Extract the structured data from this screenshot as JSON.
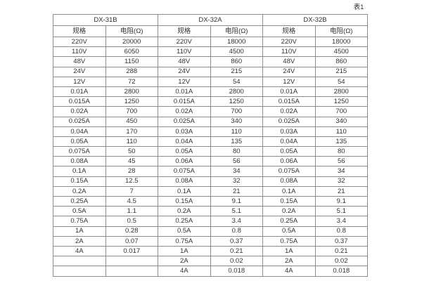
{
  "page": {
    "table_label": "表1"
  },
  "table": {
    "groups": [
      {
        "label": "DX-31B"
      },
      {
        "label": "DX-32A"
      },
      {
        "label": "DX-32B"
      }
    ],
    "column_headers": {
      "spec": "规格",
      "resistance": "电阻(Ω)"
    },
    "rows": [
      [
        "220V",
        "20000",
        "220V",
        "18000",
        "220V",
        "18000"
      ],
      [
        "110V",
        "6050",
        "110V",
        "4500",
        "110V",
        "4500"
      ],
      [
        "48V",
        "1150",
        "48V",
        "860",
        "48V",
        "860"
      ],
      [
        "24V",
        "288",
        "24V",
        "215",
        "24V",
        "215"
      ],
      [
        "12V",
        "72",
        "12V",
        "54",
        "12V",
        "54"
      ],
      [
        "0.01A",
        "2800",
        "0.01A",
        "2800",
        "0.01A",
        "2800"
      ],
      [
        "0.015A",
        "1250",
        "0.015A",
        "1250",
        "0.015A",
        "1250"
      ],
      [
        "0.02A",
        "700",
        "0.02A",
        "700",
        "0.02A",
        "700"
      ],
      [
        "0.025A",
        "450",
        "0.025A",
        "340",
        "0.025A",
        "340"
      ],
      [
        "0.04A",
        "170",
        "0.03A",
        "110",
        "0.03A",
        "110"
      ],
      [
        "0.05A",
        "110",
        "0.04A",
        "135",
        "0.04A",
        "135"
      ],
      [
        "0.075A",
        "50",
        "0.05A",
        "80",
        "0.05A",
        "80"
      ],
      [
        "0.08A",
        "45",
        "0.06A",
        "56",
        "0.06A",
        "56"
      ],
      [
        "0.1A",
        "28",
        "0.075A",
        "34",
        "0.075A",
        "34"
      ],
      [
        "0.15A",
        "12.5",
        "0.08A",
        "32",
        "0.08A",
        "32"
      ],
      [
        "0.2A",
        "7",
        "0.1A",
        "21",
        "0.1A",
        "21"
      ],
      [
        "0.25A",
        "4.5",
        "0.15A",
        "9.1",
        "0.15A",
        "9.1"
      ],
      [
        "0.5A",
        "1.1",
        "0.2A",
        "5.1",
        "0.2A",
        "5.1"
      ],
      [
        "0.75A",
        "0.5",
        "0.25A",
        "3.4",
        "0.25A",
        "3.4"
      ],
      [
        "1A",
        "0.28",
        "0.5A",
        "0.8",
        "0.5A",
        "0.8"
      ],
      [
        "2A",
        "0.07",
        "0.75A",
        "0.37",
        "0.75A",
        "0.37"
      ],
      [
        "4A",
        "0.017",
        "1A",
        "0.21",
        "1A",
        "0.21"
      ],
      [
        "",
        "",
        "2A",
        "0.02",
        "2A",
        "0.02"
      ],
      [
        "",
        "",
        "4A",
        "0.018",
        "4A",
        "0.018"
      ]
    ]
  },
  "colors": {
    "background": "#ffffff",
    "border": "#8c8c8c",
    "text": "#333333"
  }
}
